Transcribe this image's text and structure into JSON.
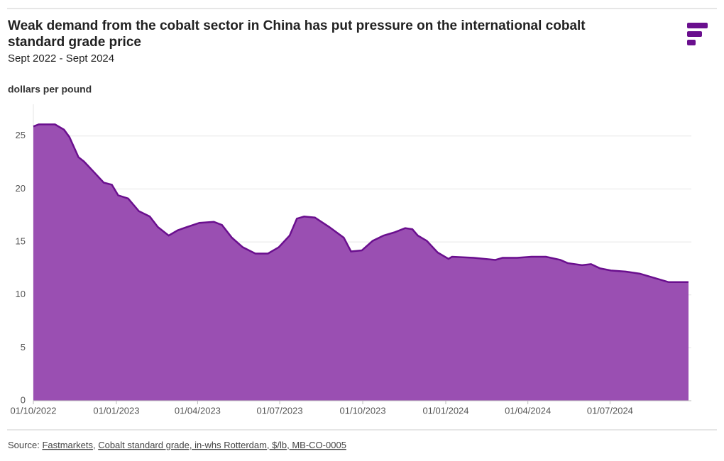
{
  "chart_data": {
    "type": "area",
    "title": [
      "Weak demand from the cobalt sector in China has put pressure on the international cobalt",
      "standard grade price"
    ],
    "subtitle": "Sept 2022 - Sept 2024",
    "y_label": "dollars per pound",
    "color": "#9a4fb2",
    "line_color": "#6a0f8e",
    "grid": true,
    "ylim": [
      0,
      28
    ],
    "yticks": [
      0,
      5,
      10,
      15,
      20,
      25
    ],
    "xlim": [
      "2022-10-01",
      "2024-09-26"
    ],
    "xticks": [
      {
        "value": "2022-10-01",
        "label": "01/10/2022"
      },
      {
        "value": "2023-01-01",
        "label": "01/01/2023"
      },
      {
        "value": "2023-04-01",
        "label": "01/04/2023"
      },
      {
        "value": "2023-07-01",
        "label": "01/07/2023"
      },
      {
        "value": "2023-10-01",
        "label": "01/10/2023"
      },
      {
        "value": "2024-01-01",
        "label": "01/01/2024"
      },
      {
        "value": "2024-04-01",
        "label": "01/04/2024"
      },
      {
        "value": "2024-07-01",
        "label": "01/07/2024"
      }
    ],
    "x": [
      "2022-10-01",
      "2022-10-07",
      "2022-10-25",
      "2022-11-04",
      "2022-11-10",
      "2022-11-20",
      "2022-11-26",
      "2022-12-06",
      "2022-12-18",
      "2022-12-27",
      "2023-01-03",
      "2023-01-14",
      "2023-01-26",
      "2023-02-07",
      "2023-02-16",
      "2023-02-28",
      "2023-03-10",
      "2023-03-20",
      "2023-04-03",
      "2023-04-19",
      "2023-04-28",
      "2023-05-09",
      "2023-05-21",
      "2023-06-04",
      "2023-06-18",
      "2023-06-30",
      "2023-07-12",
      "2023-07-20",
      "2023-07-28",
      "2023-08-09",
      "2023-08-25",
      "2023-09-10",
      "2023-09-18",
      "2023-09-30",
      "2023-10-12",
      "2023-10-24",
      "2023-11-05",
      "2023-11-17",
      "2023-11-25",
      "2023-12-01",
      "2023-12-11",
      "2023-12-23",
      "2024-01-04",
      "2024-01-08",
      "2024-02-01",
      "2024-02-25",
      "2024-03-04",
      "2024-03-20",
      "2024-04-05",
      "2024-04-21",
      "2024-05-07",
      "2024-05-15",
      "2024-05-31",
      "2024-06-10",
      "2024-06-20",
      "2024-07-02",
      "2024-07-18",
      "2024-08-03",
      "2024-08-19",
      "2024-09-04",
      "2024-09-20",
      "2024-09-26"
    ],
    "values": [
      25.9,
      26.1,
      26.1,
      25.6,
      24.9,
      23.0,
      22.6,
      21.7,
      20.6,
      20.4,
      19.4,
      19.1,
      17.9,
      17.4,
      16.4,
      15.6,
      16.1,
      16.4,
      16.8,
      16.9,
      16.6,
      15.4,
      14.5,
      13.9,
      13.9,
      14.5,
      15.6,
      17.2,
      17.4,
      17.3,
      16.4,
      15.4,
      14.1,
      14.2,
      15.1,
      15.6,
      15.9,
      16.3,
      16.2,
      15.6,
      15.1,
      14.0,
      13.4,
      13.6,
      13.5,
      13.3,
      13.5,
      13.5,
      13.6,
      13.6,
      13.3,
      13.0,
      12.8,
      12.9,
      12.5,
      12.3,
      12.2,
      12.0,
      11.6,
      11.2,
      11.2,
      11.2
    ],
    "source": {
      "label": "Source:",
      "links": [
        "Fastmarkets",
        "Cobalt standard grade, in-whs Rotterdam, $/lb, MB-CO-0005"
      ],
      "separator": ","
    }
  }
}
